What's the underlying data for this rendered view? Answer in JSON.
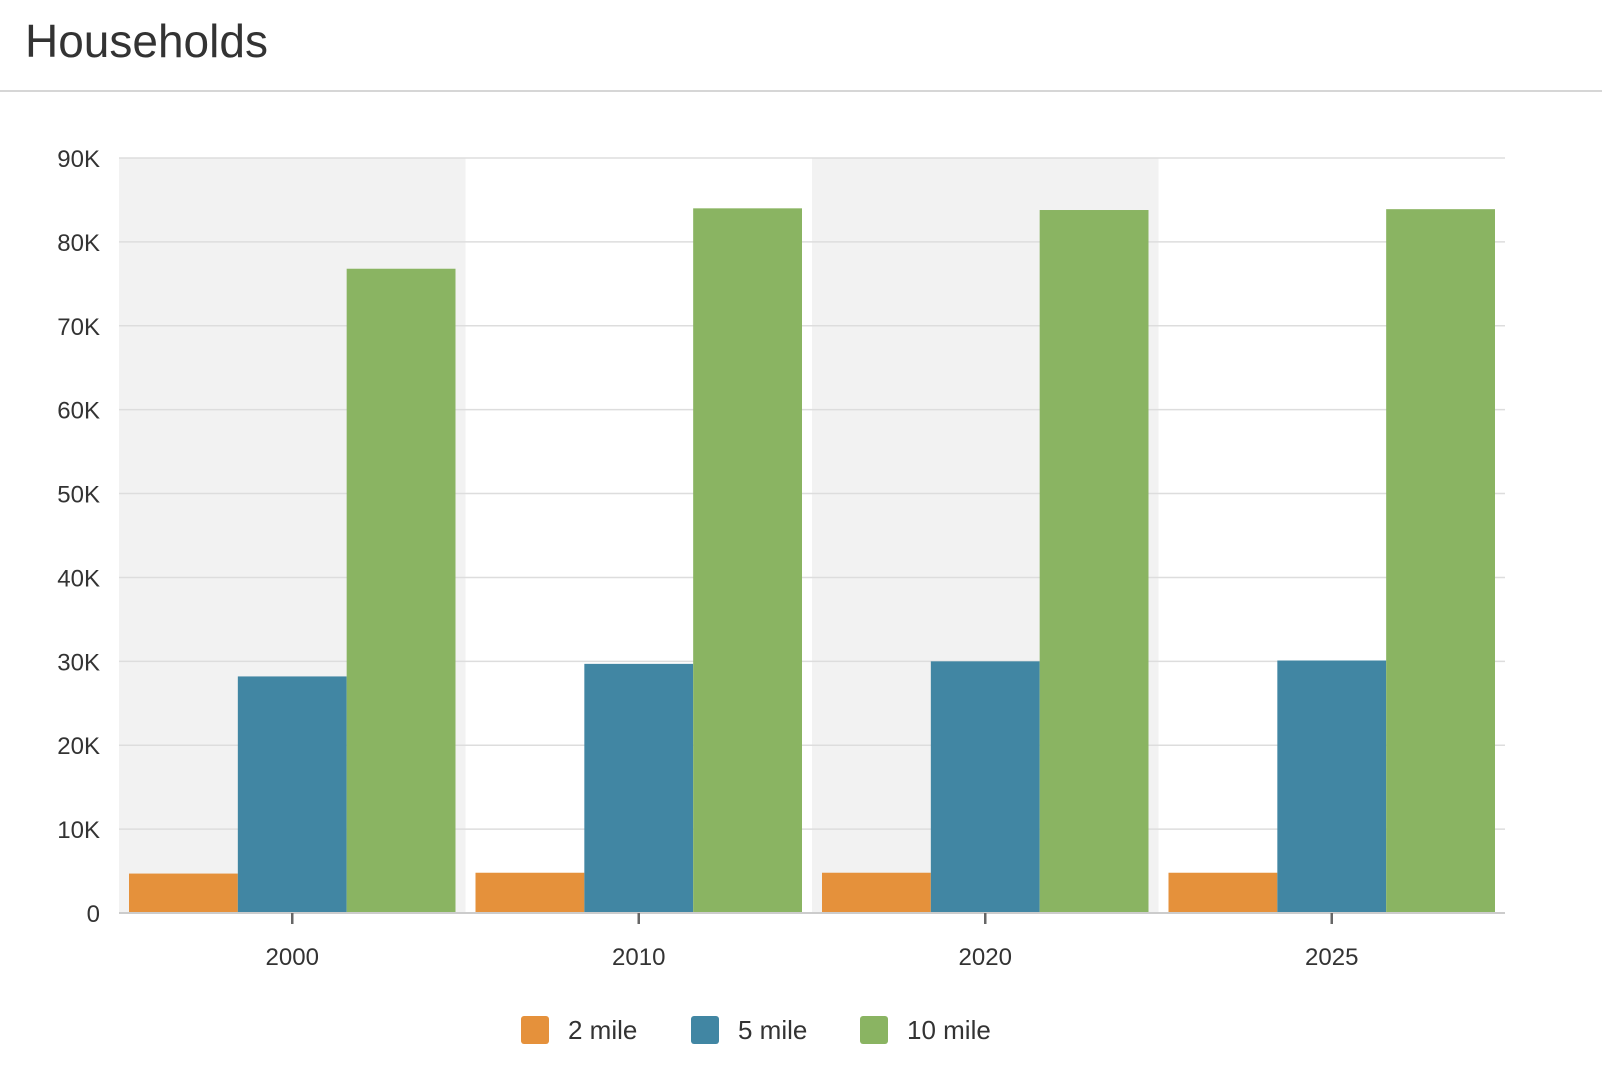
{
  "header": {
    "title": "Households"
  },
  "chart_data": {
    "type": "bar",
    "title": "Households",
    "xlabel": "",
    "ylabel": "",
    "categories": [
      "2000",
      "2010",
      "2020",
      "2025"
    ],
    "series": [
      {
        "name": "2 mile",
        "color": "#e5913b",
        "values": [
          4700,
          4800,
          4800,
          4800
        ]
      },
      {
        "name": "5 mile",
        "color": "#4186a3",
        "values": [
          28200,
          29700,
          30000,
          30100
        ]
      },
      {
        "name": "10 mile",
        "color": "#8ab462",
        "values": [
          76800,
          84000,
          83800,
          83900
        ]
      }
    ],
    "ylim": [
      0,
      90000
    ],
    "yticks": [
      0,
      10000,
      20000,
      30000,
      40000,
      50000,
      60000,
      70000,
      80000,
      90000
    ],
    "ytick_labels": [
      "0",
      "10K",
      "20K",
      "30K",
      "40K",
      "50K",
      "60K",
      "70K",
      "80K",
      "90K"
    ],
    "grid": true,
    "alternating_band_color": "#f2f2f2",
    "legend_position": "bottom-center"
  }
}
